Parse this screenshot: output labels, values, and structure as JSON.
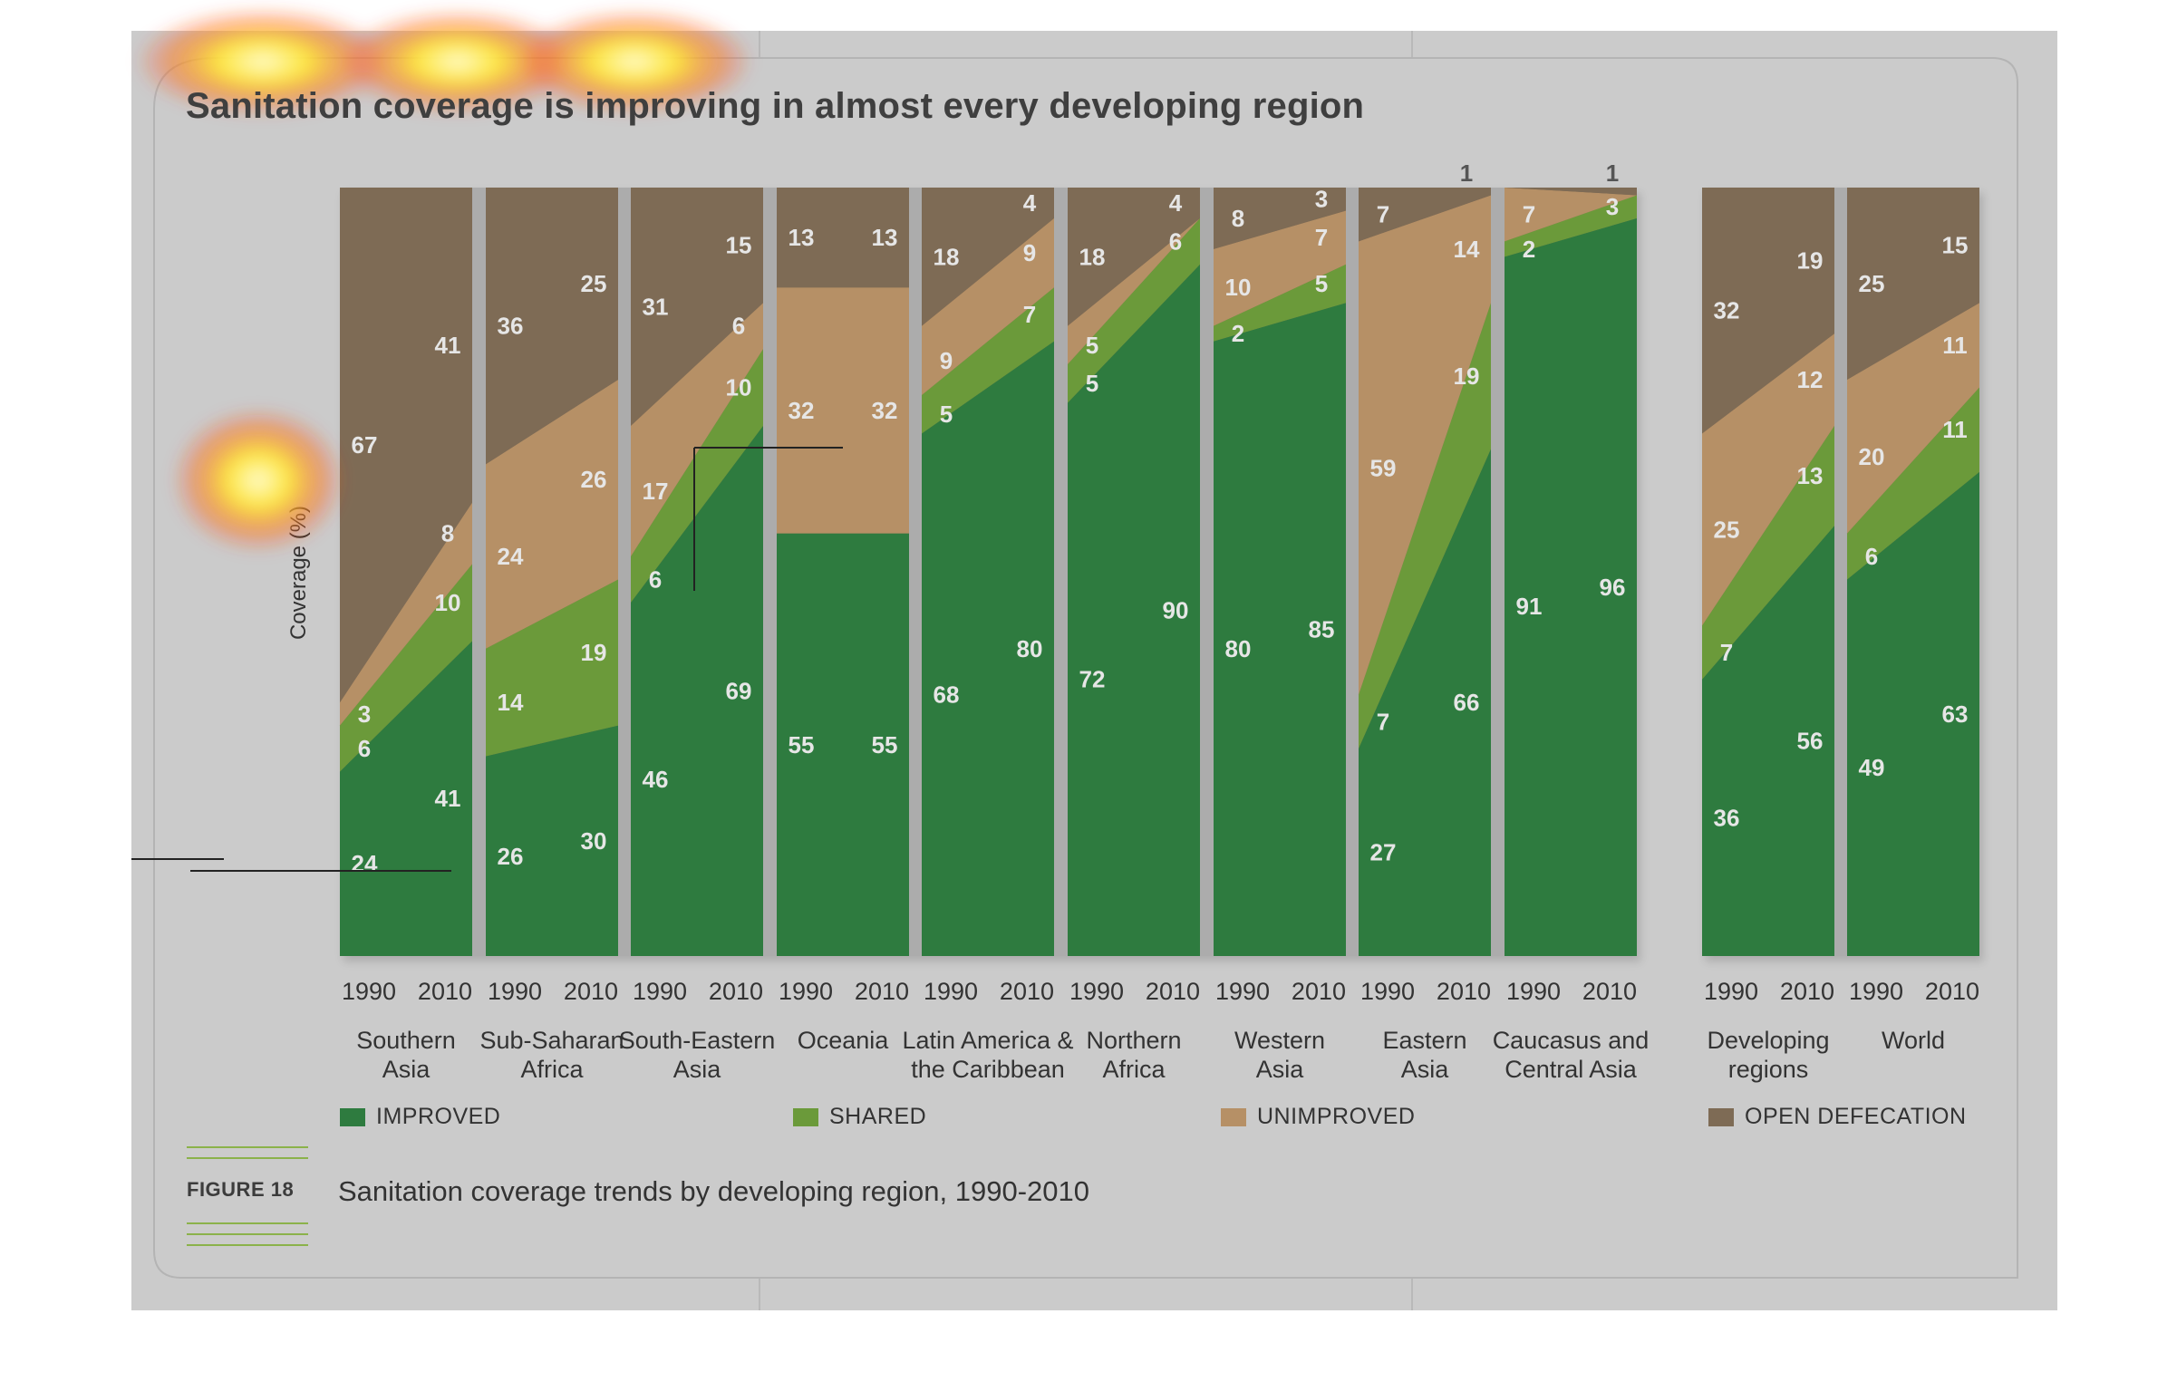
{
  "title": "Sanitation coverage is improving in almost every developing region",
  "figure_label": "FIGURE 18",
  "caption": "Sanitation coverage trends by developing region, 1990-2010",
  "colors": {
    "improved": "#2e7b3f",
    "shared": "#6b9a3a",
    "unimproved": "#b69066",
    "open_defecation": "#7e6b55",
    "background": "#cbcbcb",
    "heat": "#ffe23a"
  },
  "legend": [
    {
      "key": "improved",
      "label": "IMPROVED"
    },
    {
      "key": "shared",
      "label": "SHARED"
    },
    {
      "key": "unimproved",
      "label": "UNIMPROVED"
    },
    {
      "key": "open_defecation",
      "label": "OPEN DEFECATION"
    }
  ],
  "chart_data": {
    "type": "area",
    "ylabel": "Coverage (%)",
    "ylim": [
      0,
      100
    ],
    "x_ticks": [
      "1990",
      "2010"
    ],
    "series": [
      {
        "name": "IMPROVED",
        "key": "improved"
      },
      {
        "name": "SHARED",
        "key": "shared"
      },
      {
        "name": "UNIMPROVED",
        "key": "unimproved"
      },
      {
        "name": "OPEN DEFECATION",
        "key": "open_defecation"
      }
    ],
    "regions": [
      {
        "name": [
          "Southern",
          "Asia"
        ],
        "group": 0,
        "values": {
          "1990": [
            24,
            6,
            3,
            67
          ],
          "2010": [
            41,
            10,
            8,
            41
          ]
        }
      },
      {
        "name": [
          "Sub-Saharan",
          "Africa"
        ],
        "group": 0,
        "values": {
          "1990": [
            26,
            14,
            24,
            36
          ],
          "2010": [
            30,
            19,
            26,
            25
          ]
        }
      },
      {
        "name": [
          "South-Eastern",
          "Asia"
        ],
        "group": 0,
        "values": {
          "1990": [
            46,
            6,
            17,
            31
          ],
          "2010": [
            69,
            10,
            6,
            15
          ]
        }
      },
      {
        "name": [
          "Oceania"
        ],
        "group": 0,
        "values": {
          "1990": [
            55,
            0,
            32,
            13
          ],
          "2010": [
            55,
            0,
            32,
            13
          ]
        }
      },
      {
        "name": [
          "Latin America &",
          "the Caribbean"
        ],
        "group": 0,
        "values": {
          "1990": [
            68,
            5,
            9,
            18
          ],
          "2010": [
            80,
            7,
            9,
            4
          ]
        }
      },
      {
        "name": [
          "Northern",
          "Africa"
        ],
        "group": 0,
        "values": {
          "1990": [
            72,
            5,
            5,
            18
          ],
          "2010": [
            90,
            6,
            0,
            4
          ]
        }
      },
      {
        "name": [
          "Western",
          "Asia"
        ],
        "group": 0,
        "values": {
          "1990": [
            80,
            2,
            10,
            8
          ],
          "2010": [
            85,
            5,
            7,
            3
          ]
        }
      },
      {
        "name": [
          "Eastern",
          "Asia"
        ],
        "group": 0,
        "values": {
          "1990": [
            27,
            7,
            59,
            7
          ],
          "2010": [
            66,
            19,
            14,
            1
          ]
        }
      },
      {
        "name": [
          "Caucasus and",
          "Central Asia"
        ],
        "group": 0,
        "values": {
          "1990": [
            91,
            2,
            7,
            0
          ],
          "2010": [
            96,
            3,
            0,
            1
          ]
        }
      },
      {
        "name": [
          "Developing",
          "regions"
        ],
        "group": 1,
        "values": {
          "1990": [
            36,
            7,
            25,
            32
          ],
          "2010": [
            56,
            13,
            12,
            19
          ]
        }
      },
      {
        "name": [
          "World"
        ],
        "group": 1,
        "values": {
          "1990": [
            49,
            6,
            20,
            25
          ],
          "2010": [
            63,
            11,
            11,
            15
          ]
        }
      }
    ]
  }
}
